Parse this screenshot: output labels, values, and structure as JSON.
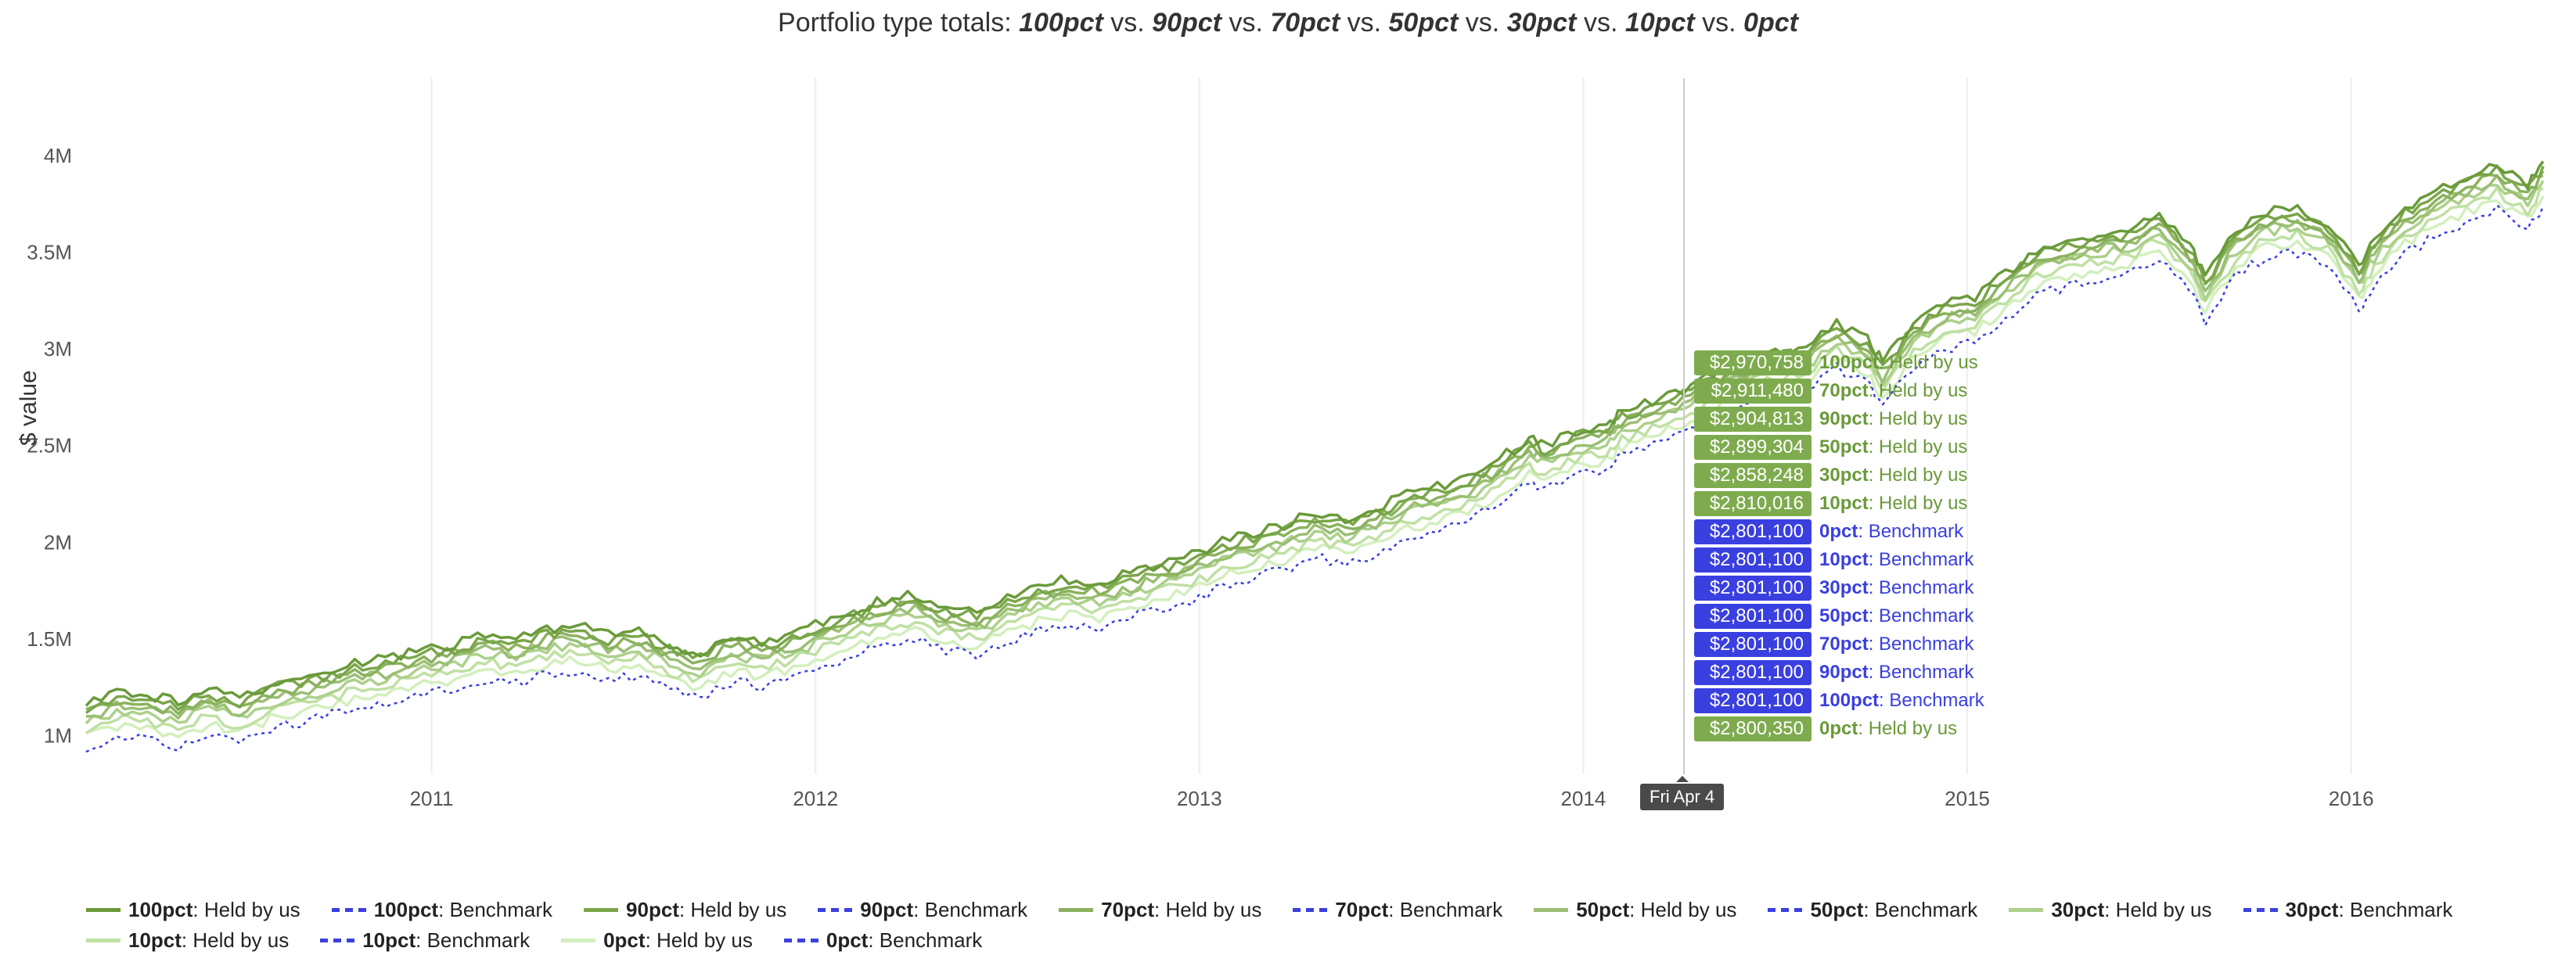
{
  "title_prefix": "Portfolio type totals: ",
  "title_items": [
    "100pct",
    "90pct",
    "70pct",
    "50pct",
    "30pct",
    "10pct",
    "0pct"
  ],
  "title_sep": " vs. ",
  "y_axis_label": "$ value",
  "chart": {
    "type": "line",
    "background_color": "#ffffff",
    "grid_color": "#eeeeee",
    "axis_text_color": "#555555",
    "title_fontsize": 34,
    "axis_fontsize": 26,
    "legend_fontsize": 26,
    "tooltip_fontsize": 24,
    "x_range": [
      2010.1,
      2016.5
    ],
    "y_range": [
      800000,
      4400000
    ],
    "y_ticks": [
      {
        "v": 1000000,
        "label": "1M"
      },
      {
        "v": 1500000,
        "label": "1.5M"
      },
      {
        "v": 2000000,
        "label": "2M"
      },
      {
        "v": 2500000,
        "label": "2.5M"
      },
      {
        "v": 3000000,
        "label": "3M"
      },
      {
        "v": 3500000,
        "label": "3.5M"
      },
      {
        "v": 4000000,
        "label": "4M"
      }
    ],
    "x_ticks": [
      {
        "v": 2011,
        "label": "2011"
      },
      {
        "v": 2012,
        "label": "2012"
      },
      {
        "v": 2013,
        "label": "2013"
      },
      {
        "v": 2014,
        "label": "2014"
      },
      {
        "v": 2015,
        "label": "2015"
      },
      {
        "v": 2016,
        "label": "2016"
      }
    ],
    "held_color_top": "#6a9a3a",
    "held_colors": [
      "#6a9a3a",
      "#7aa64a",
      "#8ab25e",
      "#9bbf74",
      "#acd08b",
      "#bfe0a3",
      "#d3efbd"
    ],
    "benchmark_color": "#3a3fe0",
    "benchmark_dash": "4,5",
    "line_width_held": 3.5,
    "line_width_bm": 2.5,
    "hover_x": 2014.26,
    "hover_label": "Fri Apr  4",
    "hover_badge_bg": "#4a4a4a",
    "hover_line_color": "#cccccc",
    "tooltip_held_bg": "#7fab4f",
    "tooltip_bm_bg": "#3a3fe0",
    "tooltip_held_text": "#6a9a3a",
    "tooltip_bm_text": "#3a3fe0",
    "tooltip_rows": [
      {
        "value": "$2,970,758",
        "series": "100pct",
        "kind": "Held by us",
        "type": "held"
      },
      {
        "value": "$2,911,480",
        "series": "70pct",
        "kind": "Held by us",
        "type": "held"
      },
      {
        "value": "$2,904,813",
        "series": "90pct",
        "kind": "Held by us",
        "type": "held"
      },
      {
        "value": "$2,899,304",
        "series": "50pct",
        "kind": "Held by us",
        "type": "held"
      },
      {
        "value": "$2,858,248",
        "series": "30pct",
        "kind": "Held by us",
        "type": "held"
      },
      {
        "value": "$2,810,016",
        "series": "10pct",
        "kind": "Held by us",
        "type": "held"
      },
      {
        "value": "$2,801,100",
        "series": "0pct",
        "kind": "Benchmark",
        "type": "bm"
      },
      {
        "value": "$2,801,100",
        "series": "10pct",
        "kind": "Benchmark",
        "type": "bm"
      },
      {
        "value": "$2,801,100",
        "series": "30pct",
        "kind": "Benchmark",
        "type": "bm"
      },
      {
        "value": "$2,801,100",
        "series": "50pct",
        "kind": "Benchmark",
        "type": "bm"
      },
      {
        "value": "$2,801,100",
        "series": "70pct",
        "kind": "Benchmark",
        "type": "bm"
      },
      {
        "value": "$2,801,100",
        "series": "90pct",
        "kind": "Benchmark",
        "type": "bm"
      },
      {
        "value": "$2,801,100",
        "series": "100pct",
        "kind": "Benchmark",
        "type": "bm"
      },
      {
        "value": "$2,800,350",
        "series": "0pct",
        "kind": "Held by us",
        "type": "held"
      }
    ],
    "base_series_x": [
      2010.1,
      2010.18,
      2010.26,
      2010.34,
      2010.42,
      2010.5,
      2010.58,
      2010.66,
      2010.74,
      2010.82,
      2010.9,
      2010.98,
      2011.06,
      2011.14,
      2011.22,
      2011.3,
      2011.38,
      2011.46,
      2011.54,
      2011.62,
      2011.7,
      2011.78,
      2011.86,
      2011.94,
      2012.02,
      2012.1,
      2012.18,
      2012.26,
      2012.34,
      2012.42,
      2012.5,
      2012.58,
      2012.66,
      2012.74,
      2012.82,
      2012.9,
      2012.98,
      2013.06,
      2013.14,
      2013.22,
      2013.3,
      2013.38,
      2013.46,
      2013.54,
      2013.62,
      2013.7,
      2013.78,
      2013.86,
      2013.9,
      2013.98,
      2014.06,
      2014.1,
      2014.18,
      2014.26,
      2014.34,
      2014.42,
      2014.5,
      2014.58,
      2014.66,
      2014.74,
      2014.78,
      2014.86,
      2014.94,
      2015.02,
      2015.1,
      2015.18,
      2015.26,
      2015.34,
      2015.42,
      2015.5,
      2015.58,
      2015.62,
      2015.7,
      2015.78,
      2015.86,
      2015.94,
      2016.02,
      2016.06,
      2016.14,
      2016.22,
      2016.3,
      2016.38,
      2016.46,
      2016.5
    ],
    "base_series_y_benchmark": [
      1000000,
      1060000,
      1040000,
      1000000,
      1070000,
      1020000,
      1100000,
      1130000,
      1170000,
      1210000,
      1230000,
      1280000,
      1300000,
      1350000,
      1330000,
      1380000,
      1400000,
      1350000,
      1370000,
      1300000,
      1260000,
      1340000,
      1320000,
      1360000,
      1420000,
      1480000,
      1530000,
      1560000,
      1500000,
      1470000,
      1540000,
      1600000,
      1640000,
      1620000,
      1670000,
      1720000,
      1760000,
      1830000,
      1880000,
      1920000,
      1980000,
      1950000,
      2000000,
      2080000,
      2120000,
      2160000,
      2260000,
      2360000,
      2330000,
      2400000,
      2440000,
      2500000,
      2560000,
      2620000,
      2700000,
      2760000,
      2820000,
      2840000,
      2960000,
      2880000,
      2760000,
      2960000,
      3060000,
      3100000,
      3220000,
      3340000,
      3380000,
      3420000,
      3440000,
      3540000,
      3360000,
      3200000,
      3440000,
      3540000,
      3560000,
      3480000,
      3260000,
      3400000,
      3560000,
      3640000,
      3720000,
      3780000,
      3680000,
      3800000
    ],
    "held_offsets": [
      170000,
      145000,
      120000,
      95000,
      70000,
      30000,
      -10000
    ],
    "noise_amp": 55000,
    "noise_points_per_seg": 4
  },
  "legend_items": [
    {
      "series": "100pct",
      "kind": "Held by us",
      "type": "held",
      "color_index": 0
    },
    {
      "series": "100pct",
      "kind": "Benchmark",
      "type": "bm"
    },
    {
      "series": "90pct",
      "kind": "Held by us",
      "type": "held",
      "color_index": 1
    },
    {
      "series": "90pct",
      "kind": "Benchmark",
      "type": "bm"
    },
    {
      "series": "70pct",
      "kind": "Held by us",
      "type": "held",
      "color_index": 2
    },
    {
      "series": "70pct",
      "kind": "Benchmark",
      "type": "bm"
    },
    {
      "series": "50pct",
      "kind": "Held by us",
      "type": "held",
      "color_index": 3
    },
    {
      "series": "50pct",
      "kind": "Benchmark",
      "type": "bm"
    },
    {
      "series": "30pct",
      "kind": "Held by us",
      "type": "held",
      "color_index": 4
    },
    {
      "series": "30pct",
      "kind": "Benchmark",
      "type": "bm"
    },
    {
      "series": "10pct",
      "kind": "Held by us",
      "type": "held",
      "color_index": 5
    },
    {
      "series": "10pct",
      "kind": "Benchmark",
      "type": "bm"
    },
    {
      "series": "0pct",
      "kind": "Held by us",
      "type": "held",
      "color_index": 6
    },
    {
      "series": "0pct",
      "kind": "Benchmark",
      "type": "bm"
    }
  ]
}
